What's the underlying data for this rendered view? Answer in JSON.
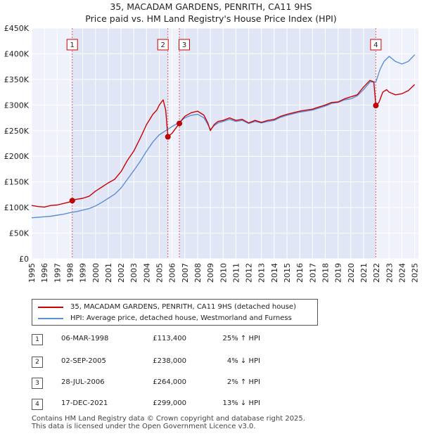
{
  "chart_data": {
    "type": "line",
    "title": "35, MACADAM GARDENS, PENRITH, CA11 9HS",
    "subtitle": "Price paid vs. HM Land Registry's House Price Index (HPI)",
    "ylim": [
      0,
      450000
    ],
    "xlim": [
      1995,
      2025.3
    ],
    "y_ticks": [
      0,
      50000,
      100000,
      150000,
      200000,
      250000,
      300000,
      350000,
      400000,
      450000
    ],
    "y_tick_labels": [
      "£0",
      "£50K",
      "£100K",
      "£150K",
      "£200K",
      "£250K",
      "£300K",
      "£350K",
      "£400K",
      "£450K"
    ],
    "x_ticks": [
      1995,
      1996,
      1997,
      1998,
      1999,
      2000,
      2001,
      2002,
      2003,
      2004,
      2005,
      2006,
      2007,
      2008,
      2009,
      2010,
      2011,
      2012,
      2013,
      2014,
      2015,
      2016,
      2017,
      2018,
      2019,
      2020,
      2021,
      2022,
      2023,
      2024,
      2025
    ],
    "x_tick_labels": [
      "1995",
      "1996",
      "1997",
      "1998",
      "1999",
      "2000",
      "2001",
      "2002",
      "2003",
      "2004",
      "2005",
      "2006",
      "2007",
      "2008",
      "2009",
      "2010",
      "2011",
      "2012",
      "2013",
      "2014",
      "2015",
      "2016",
      "2017",
      "2018",
      "2019",
      "2020",
      "2021",
      "2022",
      "2023",
      "2024",
      "2025"
    ],
    "series": [
      {
        "name": "35, MACADAM GARDENS, PENRITH, CA11 9HS (detached house)",
        "color": "#cc0000",
        "x": [
          1995.0,
          1995.5,
          1996.0,
          1996.5,
          1997.0,
          1997.5,
          1998.0,
          1998.18,
          1998.5,
          1999.0,
          1999.5,
          2000.0,
          2000.5,
          2001.0,
          2001.5,
          2002.0,
          2002.5,
          2003.0,
          2003.5,
          2004.0,
          2004.5,
          2004.8,
          2005.0,
          2005.3,
          2005.5,
          2005.67,
          2006.0,
          2006.3,
          2006.57,
          2006.8,
          2007.0,
          2007.5,
          2008.0,
          2008.5,
          2008.8,
          2009.0,
          2009.3,
          2009.6,
          2010.0,
          2010.5,
          2011.0,
          2011.5,
          2012.0,
          2012.5,
          2013.0,
          2013.5,
          2014.0,
          2014.5,
          2015.0,
          2015.5,
          2016.0,
          2016.5,
          2017.0,
          2017.5,
          2018.0,
          2018.5,
          2019.0,
          2019.5,
          2020.0,
          2020.5,
          2021.0,
          2021.5,
          2021.8,
          2021.96,
          2022.2,
          2022.5,
          2022.8,
          2023.0,
          2023.5,
          2024.0,
          2024.5,
          2025.0
        ],
        "values": [
          104000,
          102000,
          101000,
          104000,
          105000,
          108000,
          111000,
          113400,
          116000,
          118000,
          122000,
          132000,
          140000,
          148000,
          155000,
          170000,
          192000,
          210000,
          235000,
          262000,
          282000,
          290000,
          300000,
          310000,
          290000,
          238000,
          245000,
          255000,
          264000,
          272000,
          278000,
          285000,
          288000,
          280000,
          265000,
          250000,
          262000,
          268000,
          270000,
          275000,
          270000,
          272000,
          265000,
          270000,
          266000,
          270000,
          272000,
          278000,
          282000,
          285000,
          288000,
          290000,
          292000,
          296000,
          300000,
          305000,
          306000,
          312000,
          316000,
          320000,
          335000,
          348000,
          345000,
          299000,
          305000,
          325000,
          330000,
          325000,
          320000,
          322000,
          328000,
          340000
        ]
      },
      {
        "name": "HPI: Average price, detached house, Westmorland and Furness",
        "color": "#5b8fd6",
        "x": [
          1995.0,
          1995.5,
          1996.0,
          1996.5,
          1997.0,
          1997.5,
          1998.0,
          1998.5,
          1999.0,
          1999.5,
          2000.0,
          2000.5,
          2001.0,
          2001.5,
          2002.0,
          2002.5,
          2003.0,
          2003.5,
          2004.0,
          2004.5,
          2005.0,
          2005.5,
          2006.0,
          2006.5,
          2007.0,
          2007.5,
          2008.0,
          2008.5,
          2008.8,
          2009.0,
          2009.3,
          2009.6,
          2010.0,
          2010.5,
          2011.0,
          2011.5,
          2012.0,
          2012.5,
          2013.0,
          2013.5,
          2014.0,
          2014.5,
          2015.0,
          2015.5,
          2016.0,
          2016.5,
          2017.0,
          2017.5,
          2018.0,
          2018.5,
          2019.0,
          2019.5,
          2020.0,
          2020.5,
          2021.0,
          2021.5,
          2021.96,
          2022.3,
          2022.6,
          2023.0,
          2023.5,
          2024.0,
          2024.5,
          2025.0
        ],
        "values": [
          80000,
          81000,
          82000,
          83000,
          85000,
          87000,
          90000,
          92000,
          95000,
          98000,
          103000,
          110000,
          118000,
          126000,
          138000,
          155000,
          172000,
          190000,
          210000,
          228000,
          242000,
          250000,
          258000,
          265000,
          275000,
          280000,
          282000,
          275000,
          262000,
          252000,
          260000,
          265000,
          268000,
          272000,
          268000,
          270000,
          264000,
          268000,
          265000,
          268000,
          270000,
          276000,
          280000,
          283000,
          286000,
          288000,
          290000,
          294000,
          298000,
          303000,
          305000,
          310000,
          312000,
          318000,
          330000,
          345000,
          345000,
          370000,
          385000,
          395000,
          385000,
          380000,
          385000,
          398000
        ]
      }
    ],
    "transactions": [
      {
        "n": "1",
        "x": 1998.18,
        "value": 113400
      },
      {
        "n": "2",
        "x": 2005.67,
        "value": 238000
      },
      {
        "n": "3",
        "x": 2006.57,
        "value": 264000
      },
      {
        "n": "4",
        "x": 2021.96,
        "value": 299000
      }
    ]
  },
  "legend": {
    "property_label": "35, MACADAM GARDENS, PENRITH, CA11 9HS (detached house)",
    "hpi_label": "HPI: Average price, detached house, Westmorland and Furness"
  },
  "table": [
    {
      "n": "1",
      "date": "06-MAR-1998",
      "price": "£113,400",
      "pct": "25% ↑ HPI"
    },
    {
      "n": "2",
      "date": "02-SEP-2005",
      "price": "£238,000",
      "pct": "4% ↓ HPI"
    },
    {
      "n": "3",
      "date": "28-JUL-2006",
      "price": "£264,000",
      "pct": "2% ↑ HPI"
    },
    {
      "n": "4",
      "date": "17-DEC-2021",
      "price": "£299,000",
      "pct": "13% ↓ HPI"
    }
  ],
  "footer": {
    "line1": "Contains HM Land Registry data © Crown copyright and database right 2025.",
    "line2": "This data is licensed under the Open Government Licence v3.0."
  }
}
